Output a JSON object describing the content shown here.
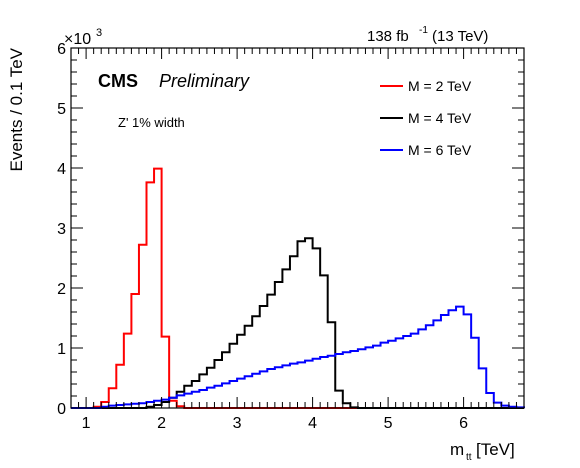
{
  "chart_data": {
    "type": "line",
    "drawstyle": "steps",
    "x_label": "m",
    "x_label_subscript": "tt",
    "x_label_unit": "[TeV]",
    "y_label": "Events / 0.1 TeV",
    "y_multiplier_base": "×10",
    "y_multiplier_exp": "3",
    "lumi_value": "138 fb",
    "lumi_exp": "-1",
    "lumi_energy": "(13 TeV)",
    "experiment": "CMS",
    "status": "Preliminary",
    "signal_label": "Z' 1% width",
    "xlim": [
      0.8,
      6.8
    ],
    "ylim": [
      0,
      6
    ],
    "x_ticks": [
      1,
      2,
      3,
      4,
      5,
      6
    ],
    "y_ticks": [
      0,
      1,
      2,
      3,
      4,
      5,
      6
    ],
    "x_tick_labels": [
      "1",
      "2",
      "3",
      "4",
      "5",
      "6"
    ],
    "y_tick_labels": [
      "0",
      "1",
      "2",
      "3",
      "4",
      "5",
      "6"
    ],
    "legend_position": "top-right",
    "bin_width": 0.1,
    "bin_low_edges": [
      0.8,
      0.9,
      1.0,
      1.1,
      1.2,
      1.3,
      1.4,
      1.5,
      1.6,
      1.7,
      1.8,
      1.9,
      2.0,
      2.1,
      2.2,
      2.3,
      2.4,
      2.5,
      2.6,
      2.7,
      2.8,
      2.9,
      3.0,
      3.1,
      3.2,
      3.3,
      3.4,
      3.5,
      3.6,
      3.7,
      3.8,
      3.9,
      4.0,
      4.1,
      4.2,
      4.3,
      4.4,
      4.5,
      4.6,
      4.7,
      4.8,
      4.9,
      5.0,
      5.1,
      5.2,
      5.3,
      5.4,
      5.5,
      5.6,
      5.7,
      5.8,
      5.9,
      6.0,
      6.1,
      6.2,
      6.3,
      6.4,
      6.5,
      6.6,
      6.7
    ],
    "series": [
      {
        "name": "M = 2 TeV",
        "color": "#ff0000",
        "values": [
          0,
          0,
          0,
          0.02,
          0.1,
          0.33,
          0.72,
          1.24,
          1.9,
          2.72,
          3.76,
          3.99,
          1.19,
          0.12,
          0.03,
          0,
          0,
          0,
          0,
          0,
          0,
          0,
          0,
          0,
          0,
          0,
          0,
          0,
          0,
          0,
          0,
          0,
          0,
          0,
          0,
          0,
          0,
          0,
          0,
          0,
          0,
          0,
          0,
          0,
          0,
          0,
          0,
          0,
          0,
          0,
          0,
          0,
          0,
          0,
          0,
          0,
          0,
          0,
          0,
          0
        ]
      },
      {
        "name": "M = 4 TeV",
        "color": "#000000",
        "values": [
          0,
          0,
          0,
          0,
          0,
          0,
          0,
          0,
          0,
          0,
          0.02,
          0.05,
          0.1,
          0.17,
          0.27,
          0.37,
          0.45,
          0.56,
          0.67,
          0.8,
          0.93,
          1.07,
          1.22,
          1.37,
          1.53,
          1.7,
          1.89,
          2.1,
          2.31,
          2.53,
          2.78,
          2.83,
          2.66,
          2.21,
          1.43,
          0.29,
          0.08,
          0.01,
          0,
          0,
          0,
          0,
          0,
          0,
          0,
          0,
          0,
          0,
          0,
          0,
          0,
          0,
          0,
          0,
          0,
          0,
          0,
          0,
          0,
          0
        ]
      },
      {
        "name": "M = 6 TeV",
        "color": "#0000ff",
        "values": [
          0,
          0,
          0,
          0,
          0.02,
          0.04,
          0.05,
          0.06,
          0.07,
          0.08,
          0.1,
          0.12,
          0.14,
          0.17,
          0.21,
          0.24,
          0.27,
          0.3,
          0.34,
          0.37,
          0.41,
          0.45,
          0.49,
          0.53,
          0.57,
          0.61,
          0.65,
          0.68,
          0.71,
          0.74,
          0.76,
          0.79,
          0.82,
          0.85,
          0.87,
          0.9,
          0.93,
          0.95,
          0.98,
          1.01,
          1.04,
          1.09,
          1.12,
          1.16,
          1.2,
          1.24,
          1.31,
          1.38,
          1.46,
          1.55,
          1.63,
          1.69,
          1.56,
          1.17,
          0.66,
          0.25,
          0.09,
          0.04,
          0.02,
          0.01
        ]
      }
    ]
  }
}
